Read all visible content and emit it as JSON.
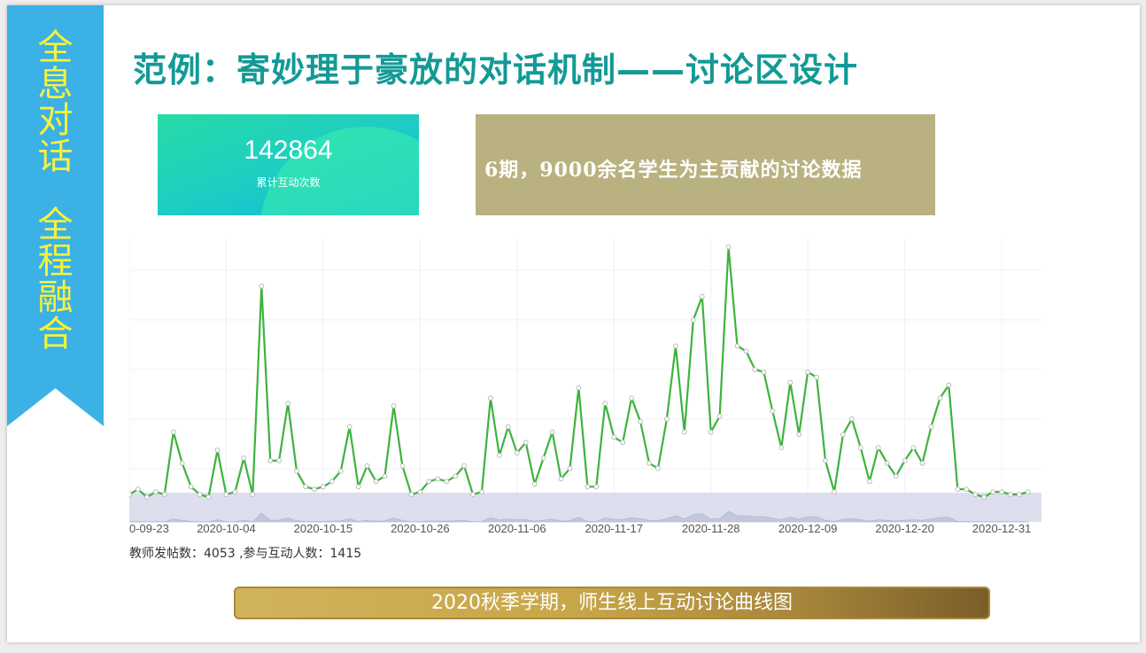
{
  "sidebar": {
    "line1": [
      "全",
      "息",
      "对",
      "话"
    ],
    "line2": [
      "全",
      "程",
      "融",
      "合"
    ]
  },
  "title": "范例：寄妙理于豪放的对话机制——讨论区设计",
  "stat": {
    "value": "142864",
    "label": "累计互动次数"
  },
  "info": {
    "text": "6期，9000余名学生为主贡献的讨论数据"
  },
  "footnote": "教师发帖数：4053 ,参与互动人数：1415",
  "banner": {
    "text": "2020秋季学期，师生线上互动讨论曲线图"
  },
  "colors": {
    "line": "#3db33d",
    "point": "#cccccc",
    "ribbon": "#3bb1e6",
    "ribbon_text": "#f6f23a",
    "title": "#129a96",
    "info_box": "#b9b280"
  },
  "chart_data": {
    "type": "line",
    "x_start": "2020-09-23",
    "x_end": "2021-01-01",
    "tick_labels": [
      "0-09-23",
      "2020-10-04",
      "2020-10-15",
      "2020-10-26",
      "2020-11-06",
      "2020-11-17",
      "2020-11-28",
      "2020-12-09",
      "2020-12-20",
      "2020-12-31"
    ],
    "ylim": [
      0,
      100
    ],
    "grid": true,
    "series": [
      {
        "values": [
          2,
          4,
          1,
          3,
          2,
          26,
          14,
          5,
          2,
          1,
          19,
          2,
          3,
          16,
          2,
          82,
          15,
          15,
          37,
          11,
          5,
          4,
          5,
          7,
          11,
          28,
          5,
          13,
          7,
          9,
          36,
          13,
          2,
          3,
          7,
          8,
          7,
          9,
          13,
          2,
          3,
          39,
          17,
          28,
          18,
          22,
          6,
          16,
          26,
          8,
          12,
          43,
          5,
          5,
          37,
          24,
          22,
          39,
          30,
          14,
          12,
          31,
          59,
          26,
          69,
          78,
          26,
          32,
          97,
          59,
          57,
          50,
          49,
          34,
          20,
          45,
          25,
          49,
          47,
          15,
          3,
          25,
          31,
          20,
          7,
          20,
          14,
          9,
          15,
          20,
          14,
          28,
          39,
          44,
          4,
          4,
          2,
          1,
          3,
          3,
          2,
          2,
          3
        ]
      }
    ]
  }
}
